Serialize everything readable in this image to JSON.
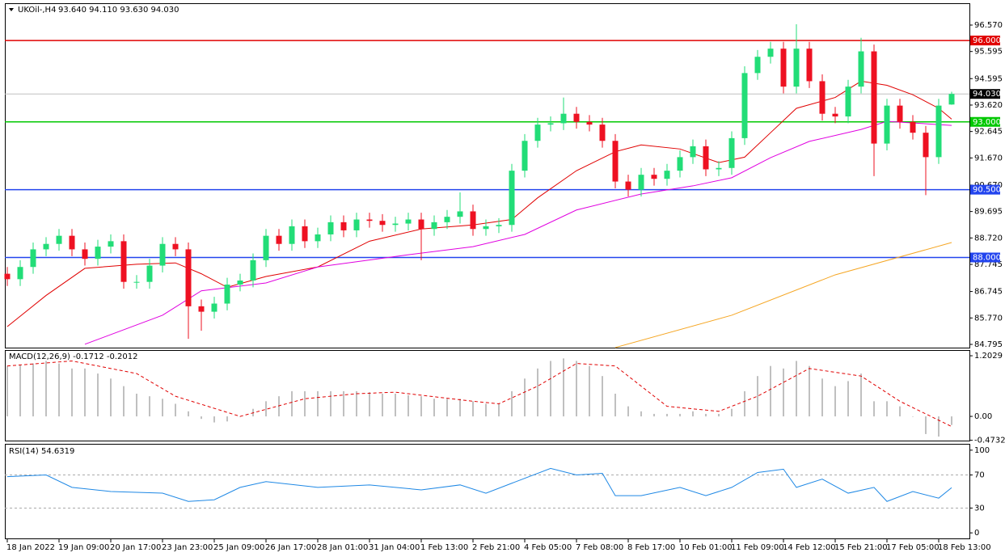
{
  "chart_data": [
    {
      "type": "candlestick",
      "title": "UKOil-,H4",
      "subtitle": "93.640 94.110 93.630 94.030",
      "categories": [
        "18 Jan 2022",
        null,
        null,
        null,
        "19 Jan 09:00",
        null,
        null,
        null,
        "20 Jan 17:00",
        null,
        null,
        null,
        "23 Jan 23:00",
        null,
        null,
        null,
        "25 Jan 09:00",
        null,
        null,
        null,
        "26 Jan 17:00",
        null,
        null,
        null,
        "28 Jan 01:00",
        null,
        null,
        null,
        "31 Jan 04:00",
        null,
        null,
        null,
        "1 Feb 13:00",
        null,
        null,
        null,
        "2 Feb 21:00",
        null,
        null,
        null,
        "4 Feb 05:00",
        null,
        null,
        null,
        "7 Feb 08:00",
        null,
        null,
        null,
        "8 Feb 17:00",
        null,
        null,
        null,
        "10 Feb 01:00",
        null,
        null,
        null,
        "11 Feb 09:00",
        null,
        null,
        null,
        "14 Feb 12:00",
        null,
        null,
        null,
        "15 Feb 21:00",
        null,
        null,
        null,
        "17 Feb 05:00",
        null,
        null,
        null,
        "18 Feb 13:00",
        null
      ],
      "open": [
        87.4,
        87.2,
        87.65,
        88.3,
        88.5,
        88.8,
        88.3,
        87.95,
        88.4,
        88.6,
        87.1,
        87.1,
        87.7,
        88.5,
        88.3,
        86.2,
        86.0,
        86.3,
        87.0,
        87.15,
        87.9,
        88.8,
        88.5,
        89.15,
        88.6,
        88.85,
        89.3,
        89.0,
        89.4,
        89.35,
        89.2,
        89.25,
        89.4,
        89.05,
        89.3,
        89.5,
        89.7,
        89.05,
        89.15,
        89.2,
        91.2,
        92.3,
        92.9,
        92.95,
        93.3,
        93.0,
        92.9,
        92.3,
        90.8,
        90.5,
        91.05,
        90.9,
        91.2,
        91.7,
        92.1,
        91.25,
        91.3,
        92.4,
        94.8,
        95.4,
        95.7,
        94.3,
        95.7,
        94.5,
        93.3,
        93.2,
        94.3,
        95.6,
        92.2,
        93.6,
        93.0,
        92.6,
        91.7,
        93.64
      ],
      "high": [
        87.65,
        87.9,
        88.55,
        88.75,
        89.05,
        89.05,
        88.55,
        88.65,
        88.85,
        88.85,
        87.35,
        87.95,
        88.75,
        88.75,
        88.55,
        86.45,
        86.55,
        87.25,
        87.4,
        88.15,
        89.05,
        89.05,
        89.4,
        89.4,
        89.1,
        89.55,
        89.55,
        89.65,
        89.65,
        89.6,
        89.5,
        89.65,
        89.65,
        89.55,
        89.75,
        90.4,
        89.95,
        89.4,
        89.45,
        91.45,
        92.55,
        93.15,
        93.2,
        93.9,
        93.55,
        93.25,
        93.15,
        92.55,
        91.05,
        91.3,
        91.3,
        91.45,
        91.95,
        92.35,
        92.35,
        91.55,
        92.65,
        95.05,
        95.65,
        95.95,
        95.95,
        96.6,
        95.95,
        94.75,
        93.55,
        94.55,
        96.1,
        95.85,
        93.85,
        93.85,
        93.25,
        92.85,
        93.85,
        94.11
      ],
      "low": [
        86.95,
        86.95,
        87.4,
        88.05,
        88.25,
        88.05,
        87.7,
        87.7,
        88.15,
        86.85,
        86.85,
        86.85,
        87.45,
        88.05,
        85.0,
        85.3,
        85.75,
        86.05,
        86.75,
        86.9,
        87.65,
        88.25,
        88.25,
        88.35,
        88.35,
        88.6,
        88.75,
        88.75,
        89.1,
        88.95,
        88.95,
        89.0,
        87.9,
        88.8,
        89.05,
        89.25,
        88.8,
        88.8,
        88.9,
        88.95,
        90.95,
        92.05,
        92.65,
        92.7,
        92.75,
        92.65,
        92.05,
        90.55,
        90.25,
        90.25,
        90.65,
        90.65,
        90.95,
        91.45,
        91.0,
        91.0,
        91.05,
        92.15,
        94.55,
        95.15,
        94.05,
        94.05,
        94.25,
        93.05,
        92.95,
        92.95,
        94.05,
        91.0,
        91.95,
        92.75,
        92.35,
        90.3,
        91.45,
        93.63
      ],
      "close": [
        87.2,
        87.65,
        88.3,
        88.5,
        88.8,
        88.3,
        87.95,
        88.4,
        88.6,
        87.1,
        87.1,
        87.7,
        88.5,
        88.3,
        86.2,
        86.0,
        86.3,
        87.0,
        87.15,
        87.9,
        88.8,
        88.5,
        89.15,
        88.6,
        88.85,
        89.3,
        89.0,
        89.4,
        89.35,
        89.2,
        89.25,
        89.4,
        89.05,
        89.3,
        89.5,
        89.7,
        89.05,
        89.15,
        89.2,
        91.2,
        92.3,
        92.9,
        92.95,
        93.3,
        93.0,
        92.9,
        92.3,
        90.8,
        90.5,
        91.05,
        90.9,
        91.2,
        91.7,
        92.1,
        91.25,
        91.3,
        92.4,
        94.8,
        95.4,
        95.7,
        94.3,
        95.7,
        94.5,
        93.3,
        93.2,
        94.3,
        95.6,
        92.2,
        93.6,
        93.0,
        92.6,
        91.7,
        93.6,
        94.03
      ],
      "up_color": "#22dd77",
      "down_color": "#ee1122",
      "lines": [
        {
          "color": "#e00000",
          "x": [
            0,
            3,
            6,
            10,
            13,
            15,
            17,
            20,
            24,
            28,
            32,
            36,
            39,
            41,
            44,
            47,
            49,
            52,
            55,
            57,
            59,
            61,
            64,
            66,
            68,
            70,
            72,
            73
          ],
          "values": [
            85.45,
            86.6,
            87.6,
            87.75,
            87.8,
            87.4,
            86.9,
            87.3,
            87.65,
            88.6,
            89.05,
            89.2,
            89.4,
            90.2,
            91.2,
            91.9,
            92.15,
            92.0,
            91.5,
            91.7,
            92.6,
            93.5,
            93.9,
            94.5,
            94.35,
            94.0,
            93.5,
            93.1
          ]
        },
        {
          "color": "#e000e0",
          "x": [
            6,
            12,
            15,
            20,
            24,
            31,
            36,
            40,
            44,
            49,
            53,
            56,
            59,
            62,
            66,
            68,
            73
          ],
          "values": [
            84.8,
            85.87,
            86.77,
            87.06,
            87.65,
            88.1,
            88.4,
            88.85,
            89.75,
            90.34,
            90.64,
            90.94,
            91.68,
            92.28,
            92.72,
            93.02,
            92.87
          ]
        },
        {
          "color": "#f5a623",
          "x": [
            47,
            56,
            64,
            73
          ],
          "values": [
            84.68,
            85.87,
            87.36,
            88.55
          ]
        }
      ],
      "levels": [
        {
          "value": 96.0,
          "label": "96.000",
          "color": "#e00000"
        },
        {
          "value": 93.0,
          "label": "93.000",
          "color": "#00c800"
        },
        {
          "value": 90.5,
          "label": "90.500",
          "color": "#2244ee"
        },
        {
          "value": 88.0,
          "label": "88.000",
          "color": "#2244ee"
        }
      ],
      "last_price": {
        "value": 94.03,
        "label": "94.030"
      },
      "ylim": [
        84.676,
        97.345
      ],
      "yticks": [
        {
          "value": 96.57,
          "label": "96.570"
        },
        {
          "value": 95.595,
          "label": "95.595"
        },
        {
          "value": 94.595,
          "label": "94.595"
        },
        {
          "value": 93.62,
          "label": "93.620"
        },
        {
          "value": 92.645,
          "label": "92.645"
        },
        {
          "value": 91.67,
          "label": "91.670"
        },
        {
          "value": 90.67,
          "label": "90.670"
        },
        {
          "value": 89.695,
          "label": "89.695"
        },
        {
          "value": 88.72,
          "label": "88.720"
        },
        {
          "value": 87.745,
          "label": "87.745"
        },
        {
          "value": 86.745,
          "label": "86.745"
        },
        {
          "value": 85.77,
          "label": "85.770"
        },
        {
          "value": 84.795,
          "label": "84.795"
        }
      ]
    },
    {
      "type": "macd",
      "title": "MACD(12,26,9) -0.1712 -0.2012",
      "values": [
        1.0,
        1.02,
        1.05,
        1.1,
        1.05,
        0.95,
        0.95,
        0.85,
        0.75,
        0.6,
        0.45,
        0.4,
        0.35,
        0.25,
        0.1,
        -0.05,
        -0.12,
        -0.1,
        0.0,
        0.15,
        0.3,
        0.4,
        0.5,
        0.5,
        0.5,
        0.5,
        0.5,
        0.5,
        0.48,
        0.45,
        0.45,
        0.42,
        0.4,
        0.35,
        0.35,
        0.35,
        0.3,
        0.25,
        0.25,
        0.5,
        0.75,
        0.95,
        1.1,
        1.15,
        1.1,
        1.0,
        0.8,
        0.45,
        0.2,
        0.1,
        0.05,
        0.05,
        0.05,
        0.1,
        0.05,
        0.05,
        0.15,
        0.5,
        0.8,
        1.0,
        0.95,
        1.1,
        1.0,
        0.75,
        0.6,
        0.7,
        0.85,
        0.3,
        0.3,
        0.2,
        0.0,
        -0.35,
        -0.4,
        -0.1712
      ],
      "color": "#c0c0c0",
      "signal": {
        "color": "#e00000",
        "x": [
          0,
          5,
          10,
          13,
          18,
          23,
          27,
          30,
          36,
          38,
          41,
          44,
          47,
          51,
          55,
          58,
          62,
          66,
          69,
          73
        ],
        "values": [
          1.0,
          1.1,
          0.85,
          0.4,
          0.0,
          0.35,
          0.45,
          0.48,
          0.3,
          0.25,
          0.6,
          1.05,
          1.0,
          0.2,
          0.1,
          0.4,
          0.95,
          0.8,
          0.3,
          -0.2012
        ]
      },
      "ylim": [
        -0.48,
        1.3
      ],
      "yticks": [
        1.2029,
        {
          "value": 0,
          "label": "0.00"
        },
        -0.4732
      ]
    },
    {
      "type": "line",
      "title": "RSI(14) 54.6319",
      "x": [
        0,
        3,
        5,
        8,
        12,
        14,
        16,
        18,
        20,
        24,
        28,
        32,
        35,
        37,
        39,
        42,
        44,
        46,
        47,
        49,
        52,
        54,
        56,
        58,
        60,
        61,
        63,
        65,
        67,
        68,
        70,
        72,
        73
      ],
      "values": [
        68,
        70,
        55,
        50,
        48,
        38,
        40,
        55,
        62,
        55,
        58,
        52,
        58,
        48,
        60,
        78,
        70,
        72,
        45,
        45,
        55,
        45,
        55,
        73,
        77,
        55,
        65,
        48,
        55,
        38,
        50,
        42,
        54.6319
      ],
      "color": "#1e88e5",
      "ylim": [
        -6.7,
        106.7
      ],
      "yticks": [
        100,
        70,
        30,
        0
      ]
    }
  ]
}
